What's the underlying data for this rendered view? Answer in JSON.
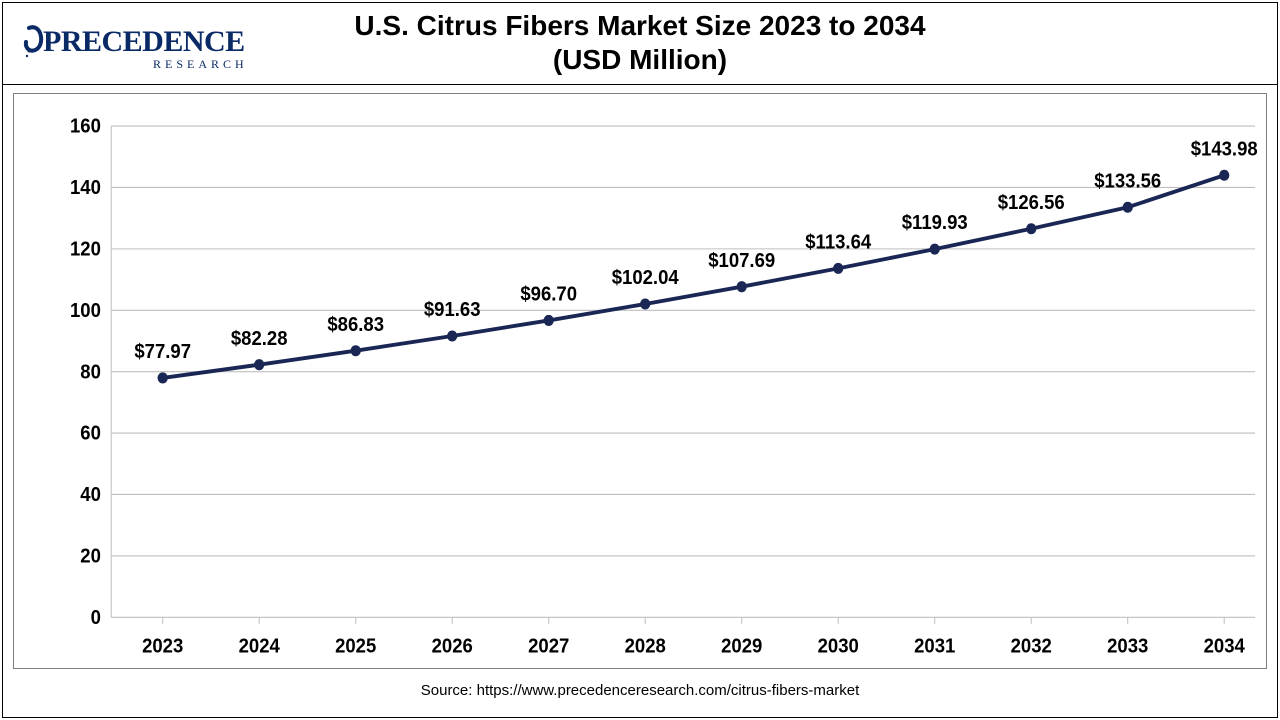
{
  "logo": {
    "brand_text": "PRECEDENCE",
    "sub_text": "RESEARCH",
    "color": "#0a2a66"
  },
  "title": {
    "line1": "U.S. Citrus Fibers Market Size 2023 to 2034",
    "line2": "(USD Million)",
    "fontsize": 28,
    "fontweight": "bold",
    "color": "#000000"
  },
  "chart": {
    "type": "line",
    "categories": [
      "2023",
      "2024",
      "2025",
      "2026",
      "2027",
      "2028",
      "2029",
      "2030",
      "2031",
      "2032",
      "2033",
      "2034"
    ],
    "values": [
      77.97,
      82.28,
      86.83,
      91.63,
      96.7,
      102.04,
      107.69,
      113.64,
      119.93,
      126.56,
      133.56,
      143.98
    ],
    "value_labels": [
      "$77.97",
      "$82.28",
      "$86.83",
      "$91.63",
      "$96.70",
      "$102.04",
      "$107.69",
      "$113.64",
      "$119.93",
      "$126.56",
      "$133.56",
      "$143.98"
    ],
    "ylim": [
      0,
      160
    ],
    "ytick_step": 20,
    "yticks": [
      0,
      20,
      40,
      60,
      80,
      100,
      120,
      140,
      160
    ],
    "line_color": "#1a2654",
    "line_width": 3.5,
    "marker_color": "#1a2654",
    "marker_radius": 5,
    "grid_color": "#bfbfbf",
    "background_color": "#ffffff",
    "axis_label_fontsize": 18,
    "axis_label_fontweight": "bold",
    "data_label_fontsize": 18,
    "data_label_fontweight": "bold",
    "border_color": "#7f7f7f"
  },
  "source": {
    "text": "Source: https://www.precedenceresearch.com/citrus-fibers-market",
    "fontsize": 15,
    "color": "#000000"
  }
}
